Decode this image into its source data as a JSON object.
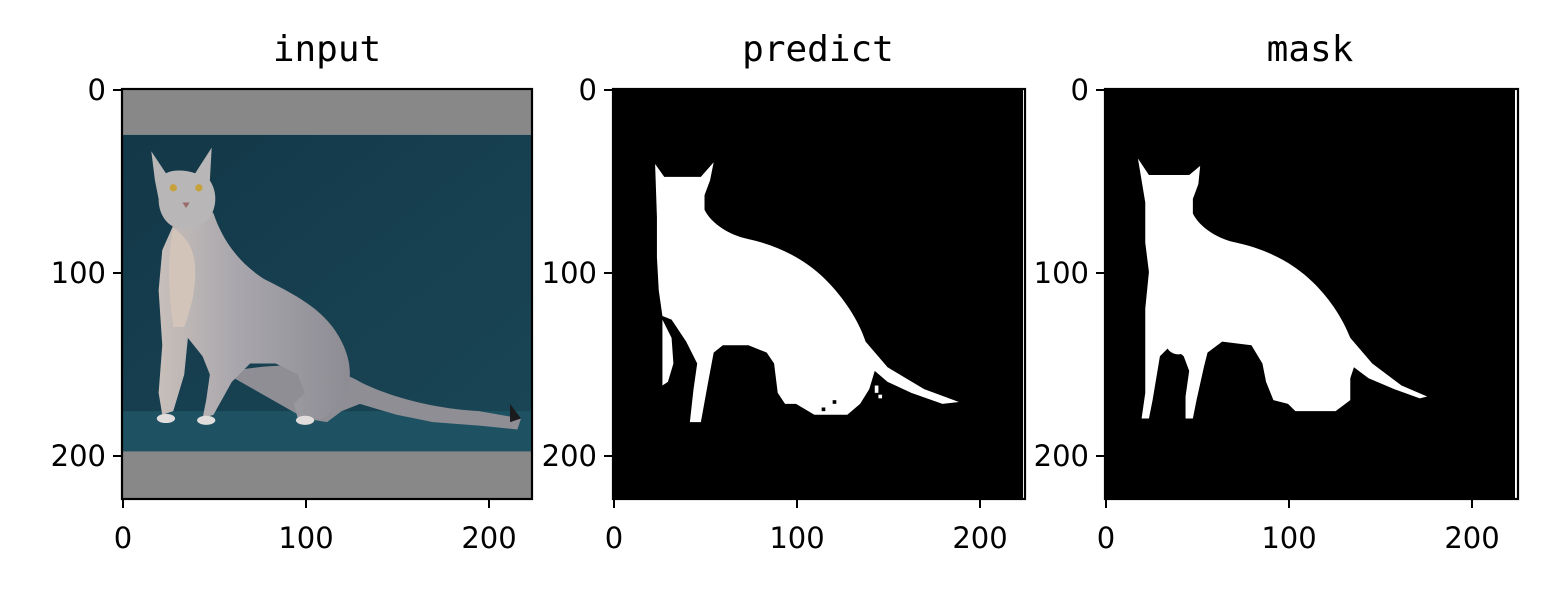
{
  "chart_data": [
    {
      "type": "image",
      "title": "input",
      "xlim": [
        0,
        224
      ],
      "ylim": [
        224,
        0
      ],
      "x_ticks": [
        "0",
        "100",
        "200"
      ],
      "y_ticks": [
        "0",
        "100",
        "200"
      ],
      "content": "photo of a grey cat on a dark teal background with grey padding bars at top and bottom"
    },
    {
      "type": "image",
      "title": "predict",
      "xlim": [
        0,
        224
      ],
      "ylim": [
        224,
        0
      ],
      "x_ticks": [
        "0",
        "100",
        "200"
      ],
      "y_ticks": [
        "0",
        "100",
        "200"
      ],
      "content": "binary segmentation: white cat silhouette on black"
    },
    {
      "type": "image",
      "title": "mask",
      "xlim": [
        0,
        224
      ],
      "ylim": [
        224,
        0
      ],
      "x_ticks": [
        "0",
        "100",
        "200"
      ],
      "y_ticks": [
        "0",
        "100",
        "200"
      ],
      "content": "ground-truth binary mask: white cat silhouette on black"
    }
  ],
  "colors": {
    "padding_gray": "#888888",
    "background_teal": "#163f4f",
    "floor_teal": "#1e5060",
    "cat_gray": "#a8a7ac",
    "mask_white": "#ffffff",
    "mask_black": "#000000"
  }
}
